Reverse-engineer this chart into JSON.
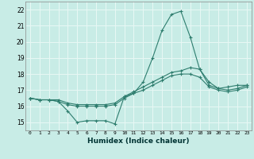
{
  "xlabel": "Humidex (Indice chaleur)",
  "xlim": [
    -0.5,
    23.5
  ],
  "ylim": [
    14.5,
    22.5
  ],
  "yticks": [
    15,
    16,
    17,
    18,
    19,
    20,
    21,
    22
  ],
  "xticks": [
    0,
    1,
    2,
    3,
    4,
    5,
    6,
    7,
    8,
    9,
    10,
    11,
    12,
    13,
    14,
    15,
    16,
    17,
    18,
    19,
    20,
    21,
    22,
    23
  ],
  "background_color": "#c8ece6",
  "grid_color": "#e8f8f5",
  "line_color": "#2e7d6e",
  "series": [
    [
      16.5,
      16.4,
      16.4,
      16.3,
      15.7,
      15.0,
      15.1,
      15.1,
      15.1,
      14.9,
      16.6,
      16.8,
      17.5,
      19.0,
      20.7,
      21.7,
      21.9,
      20.3,
      18.3,
      17.3,
      17.1,
      17.2,
      17.3,
      17.3
    ],
    [
      16.5,
      16.4,
      16.4,
      16.4,
      16.2,
      16.1,
      16.1,
      16.1,
      16.1,
      16.2,
      16.6,
      16.9,
      17.2,
      17.5,
      17.8,
      18.1,
      18.2,
      18.4,
      18.3,
      17.5,
      17.1,
      17.0,
      17.1,
      17.3
    ],
    [
      16.5,
      16.4,
      16.4,
      16.3,
      16.1,
      16.0,
      16.0,
      16.0,
      16.0,
      16.1,
      16.5,
      16.8,
      17.0,
      17.3,
      17.6,
      17.9,
      18.0,
      18.0,
      17.8,
      17.2,
      17.0,
      16.9,
      17.0,
      17.2
    ]
  ]
}
